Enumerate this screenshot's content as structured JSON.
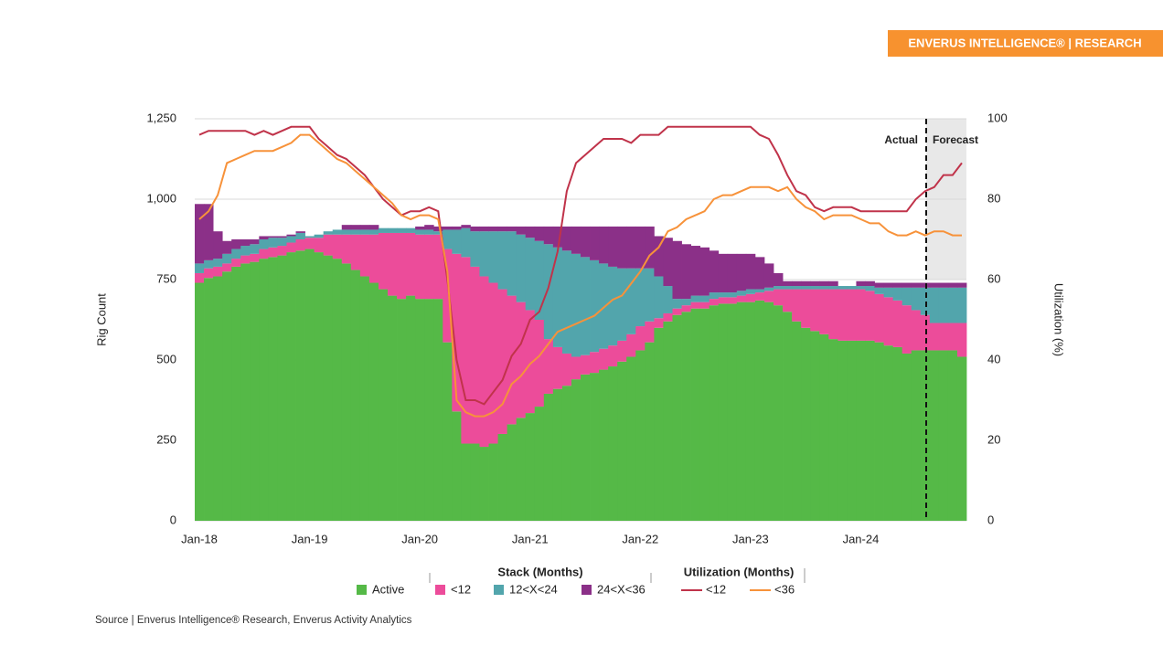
{
  "header": {
    "badge": "ENVERUS INTELLIGENCE® | RESEARCH"
  },
  "chart_data": {
    "type": "stacked-area-line",
    "y_label": "Rig Count",
    "y2_label": "Utilization (%)",
    "stack_title": "Stack (Months)",
    "line_title": "Utilization (Months)",
    "annotations": [
      "Actual",
      "Forecast"
    ],
    "categories": [
      "Jan-18",
      null,
      null,
      null,
      null,
      null,
      null,
      null,
      null,
      null,
      null,
      null,
      "Jan-19",
      null,
      null,
      null,
      null,
      null,
      null,
      null,
      null,
      null,
      null,
      null,
      "Jan-20",
      null,
      null,
      null,
      null,
      null,
      null,
      null,
      null,
      null,
      null,
      null,
      "Jan-21",
      null,
      null,
      null,
      null,
      null,
      null,
      null,
      null,
      null,
      null,
      null,
      "Jan-22",
      null,
      null,
      null,
      null,
      null,
      null,
      null,
      null,
      null,
      null,
      null,
      "Jan-23",
      null,
      null,
      null,
      null,
      null,
      null,
      null,
      null,
      null,
      null,
      null,
      "Jan-24",
      null,
      null,
      null,
      null,
      null,
      null,
      null,
      null,
      null,
      null,
      null
    ],
    "ylim": [
      0,
      1250
    ],
    "yticks": [
      0,
      250,
      500,
      {
        "value": 750,
        "label": "750"
      },
      {
        "value": 1000,
        "label": "1,000"
      },
      {
        "value": 1250,
        "label": "1,250"
      }
    ],
    "y2lim": [
      0,
      100
    ],
    "y2ticks": [
      0,
      20,
      40,
      60,
      80,
      100
    ],
    "grid": true,
    "series": [
      {
        "name": "Active",
        "type": "area",
        "color": "#55b947",
        "values": [
          740,
          755,
          760,
          775,
          790,
          800,
          805,
          815,
          820,
          825,
          835,
          840,
          845,
          835,
          825,
          815,
          800,
          780,
          760,
          740,
          720,
          700,
          690,
          700,
          690,
          690,
          690,
          555,
          340,
          240,
          240,
          230,
          240,
          270,
          300,
          320,
          335,
          355,
          395,
          410,
          420,
          440,
          455,
          460,
          470,
          480,
          495,
          510,
          530,
          555,
          600,
          620,
          640,
          650,
          660,
          660,
          670,
          675,
          675,
          680,
          680,
          685,
          680,
          670,
          650,
          620,
          600,
          590,
          580,
          565,
          560,
          560,
          560,
          560,
          555,
          545,
          540,
          520,
          530,
          530,
          530,
          530,
          530,
          510
        ]
      },
      {
        "name": "<12",
        "type": "area",
        "color": "#ec4c9a",
        "values": [
          30,
          30,
          30,
          25,
          25,
          25,
          25,
          30,
          30,
          30,
          30,
          35,
          35,
          45,
          65,
          75,
          90,
          110,
          130,
          150,
          175,
          195,
          205,
          195,
          200,
          200,
          200,
          290,
          490,
          580,
          550,
          530,
          500,
          450,
          400,
          360,
          320,
          270,
          170,
          130,
          100,
          70,
          60,
          65,
          65,
          65,
          65,
          70,
          75,
          65,
          30,
          25,
          20,
          20,
          20,
          20,
          20,
          20,
          20,
          20,
          25,
          25,
          35,
          50,
          70,
          100,
          120,
          130,
          140,
          155,
          160,
          160,
          160,
          155,
          150,
          150,
          145,
          150,
          125,
          110,
          85,
          85,
          85,
          105
        ]
      },
      {
        "name": "12<X<24",
        "type": "area",
        "color": "#52a5ac",
        "values": [
          30,
          25,
          25,
          30,
          30,
          30,
          30,
          30,
          30,
          25,
          20,
          20,
          5,
          10,
          10,
          15,
          15,
          15,
          15,
          15,
          15,
          15,
          15,
          15,
          15,
          15,
          10,
          60,
          75,
          90,
          110,
          140,
          160,
          180,
          200,
          210,
          225,
          245,
          295,
          310,
          320,
          320,
          305,
          285,
          265,
          245,
          225,
          205,
          180,
          165,
          130,
          85,
          30,
          20,
          20,
          20,
          20,
          15,
          15,
          15,
          15,
          10,
          10,
          10,
          10,
          10,
          10,
          10,
          10,
          10,
          10,
          10,
          10,
          15,
          20,
          30,
          40,
          55,
          70,
          85,
          110,
          110,
          110,
          110
        ]
      },
      {
        "name": "24<X<36",
        "type": "area",
        "color": "#8b3088",
        "values": [
          185,
          175,
          85,
          40,
          30,
          20,
          15,
          10,
          5,
          5,
          5,
          5,
          0,
          0,
          0,
          0,
          15,
          15,
          15,
          15,
          0,
          0,
          0,
          0,
          10,
          15,
          15,
          10,
          10,
          10,
          15,
          15,
          15,
          15,
          15,
          25,
          35,
          45,
          55,
          65,
          75,
          85,
          95,
          105,
          115,
          125,
          130,
          130,
          130,
          130,
          125,
          150,
          180,
          170,
          155,
          150,
          130,
          120,
          120,
          115,
          110,
          100,
          75,
          40,
          15,
          15,
          15,
          15,
          15,
          15,
          0,
          0,
          15,
          15,
          15,
          15,
          15,
          15,
          15,
          15,
          15,
          15,
          15,
          15
        ]
      },
      {
        "name": "<12",
        "type": "line",
        "axis": "y2",
        "color": "#c0334a",
        "values": [
          96,
          97,
          97,
          97,
          97,
          97,
          96,
          97,
          96,
          97,
          98,
          98,
          98,
          95,
          93,
          91,
          90,
          88,
          86,
          83,
          80,
          78,
          76,
          77,
          77,
          78,
          77,
          60,
          40,
          30,
          30,
          29,
          32,
          35,
          41,
          44,
          50,
          52,
          58,
          67,
          82,
          89,
          91,
          93,
          95,
          95,
          95,
          94,
          96,
          96,
          96,
          98,
          98,
          98,
          98,
          98,
          98,
          98,
          98,
          98,
          98,
          96,
          95,
          91,
          86,
          82,
          81,
          78,
          77,
          78,
          78,
          78,
          77,
          77,
          77,
          77,
          77,
          77,
          80,
          82,
          83,
          86,
          86,
          89
        ]
      },
      {
        "name": "<36",
        "type": "line",
        "axis": "y2",
        "color": "#f7923a",
        "values": [
          75,
          77,
          81,
          89,
          90,
          91,
          92,
          92,
          92,
          93,
          94,
          96,
          96,
          94,
          92,
          90,
          89,
          87,
          85,
          83,
          81,
          79,
          76,
          75,
          76,
          76,
          75,
          62,
          30,
          27,
          26,
          26,
          27,
          29,
          34,
          36,
          39,
          41,
          44,
          47,
          48,
          49,
          50,
          51,
          53,
          55,
          56,
          59,
          62,
          66,
          68,
          72,
          73,
          75,
          76,
          77,
          80,
          81,
          81,
          82,
          83,
          83,
          83,
          82,
          83,
          80,
          78,
          77,
          75,
          76,
          76,
          76,
          75,
          74,
          74,
          72,
          71,
          71,
          72,
          71,
          72,
          72,
          71,
          71
        ]
      }
    ]
  },
  "footer": {
    "source": "Source | Enverus Intelligence® Research, Enverus Activity Analytics"
  }
}
